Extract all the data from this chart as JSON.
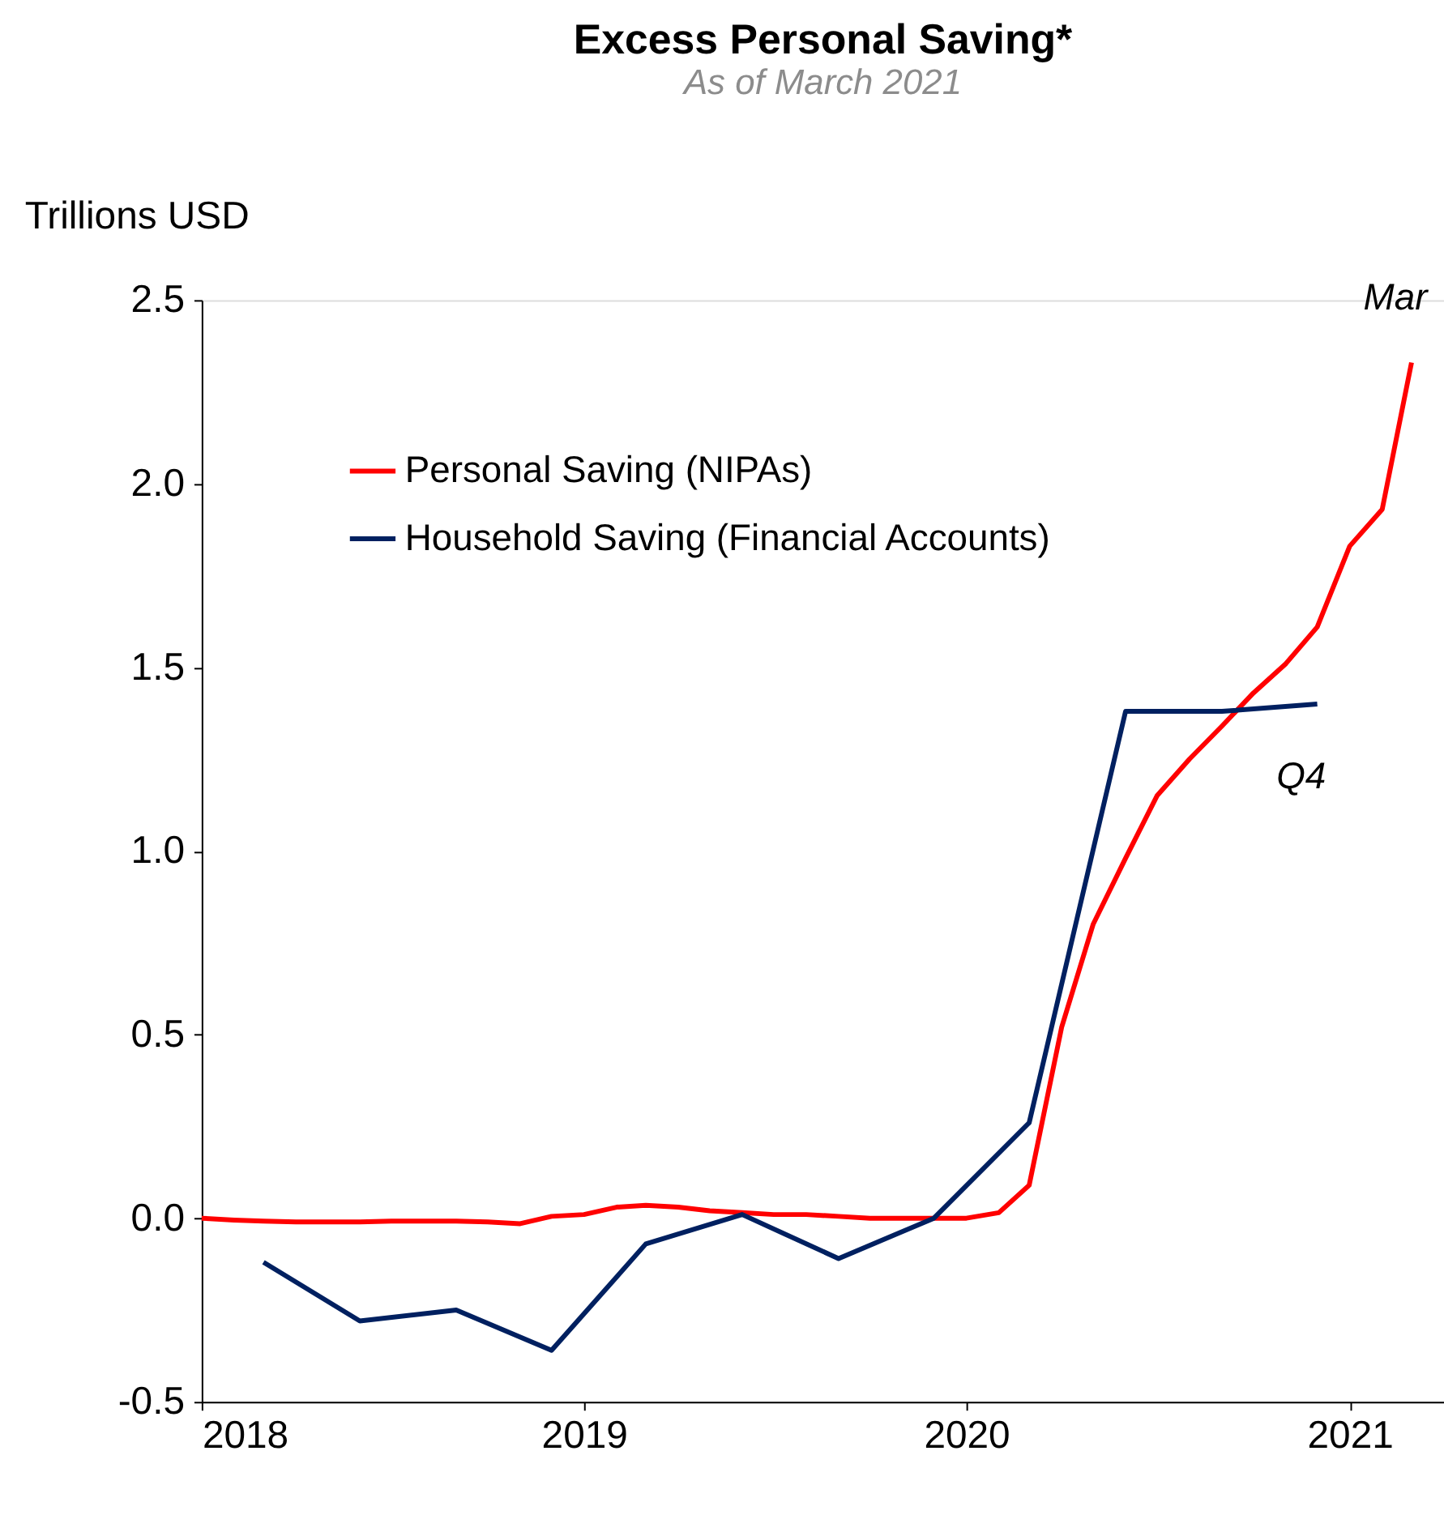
{
  "chart_data": {
    "type": "line",
    "title": "Excess Personal Saving*",
    "subtitle": "As of March 2021",
    "ylabel": "Trillions USD",
    "series": [
      {
        "name": "Personal Saving (NIPAs)",
        "color": "#ff0000",
        "x": [
          "2018-01",
          "2018-02",
          "2018-03",
          "2018-04",
          "2018-05",
          "2018-06",
          "2018-07",
          "2018-08",
          "2018-09",
          "2018-10",
          "2018-11",
          "2018-12",
          "2019-01",
          "2019-02",
          "2019-03",
          "2019-04",
          "2019-05",
          "2019-06",
          "2019-07",
          "2019-08",
          "2019-09",
          "2019-10",
          "2019-11",
          "2019-12",
          "2020-01",
          "2020-02",
          "2020-03",
          "2020-04",
          "2020-05",
          "2020-06",
          "2020-07",
          "2020-08",
          "2020-09",
          "2020-10",
          "2020-11",
          "2020-12",
          "2021-01",
          "2021-02",
          "2021-03"
        ],
        "values": [
          0.0,
          -0.005,
          -0.008,
          -0.01,
          -0.01,
          -0.01,
          -0.008,
          -0.008,
          -0.008,
          -0.01,
          -0.015,
          0.005,
          0.01,
          0.03,
          0.035,
          0.03,
          0.02,
          0.015,
          0.01,
          0.01,
          0.005,
          0.0,
          0.0,
          0.0,
          0.0,
          0.015,
          0.09,
          0.52,
          0.8,
          0.98,
          1.15,
          1.25,
          1.34,
          1.43,
          1.51,
          1.61,
          1.83,
          1.93,
          2.33
        ]
      },
      {
        "name": "Household Saving (Financial Accounts)",
        "color": "#002060",
        "x": [
          "2018-03",
          "2018-06",
          "2018-09",
          "2018-12",
          "2019-03",
          "2019-06",
          "2019-09",
          "2019-12",
          "2020-03",
          "2020-06",
          "2020-09",
          "2020-12"
        ],
        "values": [
          -0.12,
          -0.28,
          -0.25,
          -0.36,
          -0.07,
          0.01,
          -0.11,
          0.0,
          0.26,
          1.38,
          1.38,
          1.4
        ]
      }
    ],
    "xlim": [
      "2018-01",
      "2021-04"
    ],
    "xticks": [
      {
        "value": "2018-01",
        "label": "2018"
      },
      {
        "value": "2019-01",
        "label": "2019"
      },
      {
        "value": "2020-01",
        "label": "2020"
      },
      {
        "value": "2021-01",
        "label": "2021"
      }
    ],
    "ylim": [
      -0.5,
      2.5
    ],
    "yticks": [
      {
        "value": -0.5,
        "label": "-0.5"
      },
      {
        "value": 0,
        "label": "0.0"
      },
      {
        "value": 0.5,
        "label": "0.5"
      },
      {
        "value": 1,
        "label": "1.0"
      },
      {
        "value": 1.5,
        "label": "1.5"
      },
      {
        "value": 2,
        "label": "2.0"
      },
      {
        "value": 2.5,
        "label": "2.5"
      }
    ],
    "annotations": [
      {
        "text": "Mar",
        "x": "2021-03",
        "y": 2.33
      },
      {
        "text": "Q4",
        "x": "2020-12",
        "y": 1.4
      }
    ],
    "legend": "top left",
    "grid": false,
    "marker": "none",
    "line_style": "solid"
  }
}
